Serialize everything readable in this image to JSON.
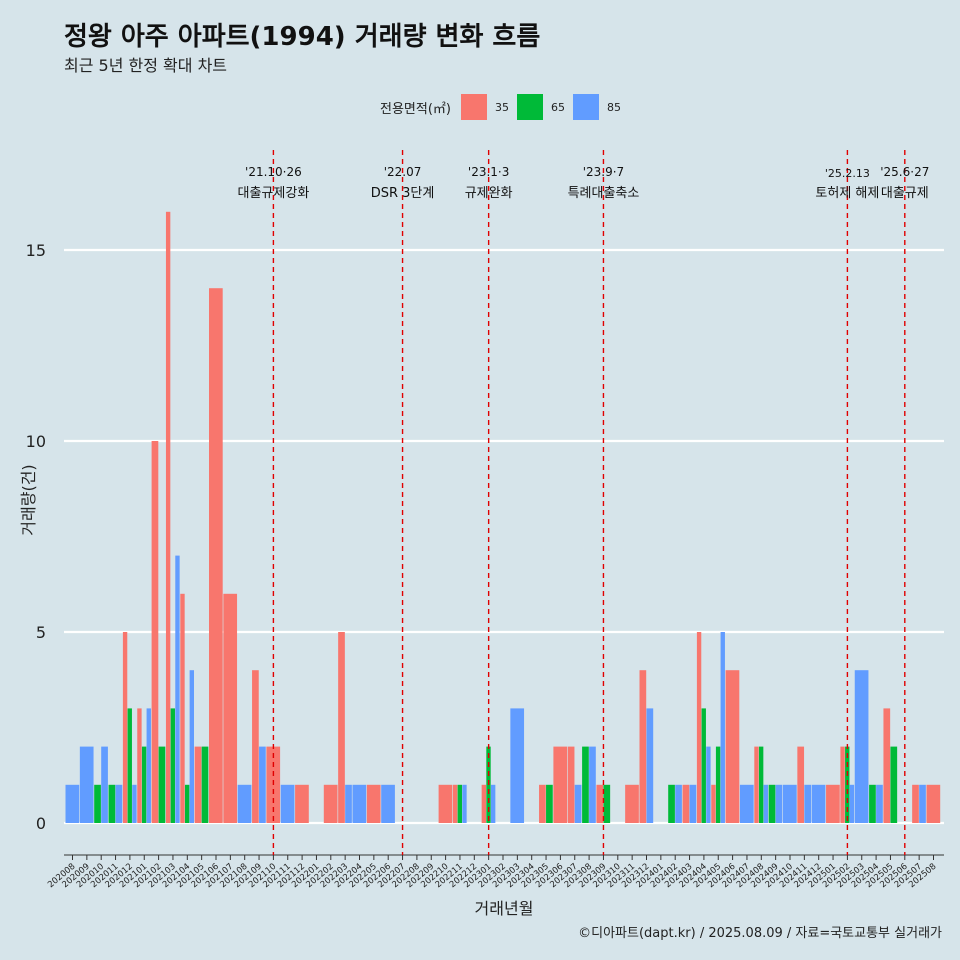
{
  "title": "정왕 아주 아파트(1994) 거래량 변화 흐름",
  "subtitle": "최근 5년 한정 확대 차트",
  "caption": "©디아파트(dapt.kr) / 2025.08.09 / 자료=국토교통부 실거래가",
  "colors": {
    "background": "#d6e4ea",
    "grid": "#ffffff",
    "s35": "#f8766d",
    "s65": "#00ba38",
    "s85": "#619cff",
    "event_line": "#e00000"
  },
  "chart_data": {
    "type": "bar",
    "xlabel": "거래년월",
    "ylabel": "거래량(건)",
    "ylim": [
      -0.7,
      17.5
    ],
    "yticks": [
      0,
      5,
      10,
      15
    ],
    "grid": true,
    "legend": {
      "title": "전용면적(㎡)",
      "position": "top",
      "entries": [
        "35",
        "65",
        "85"
      ]
    },
    "categories": [
      "202008",
      "202009",
      "202010",
      "202011",
      "202012",
      "202101",
      "202102",
      "202103",
      "202104",
      "202105",
      "202106",
      "202107",
      "202108",
      "202109",
      "202110",
      "202111",
      "202112",
      "202201",
      "202202",
      "202203",
      "202204",
      "202205",
      "202206",
      "202207",
      "202208",
      "202209",
      "202210",
      "202211",
      "202212",
      "202301",
      "202302",
      "202303",
      "202304",
      "202305",
      "202306",
      "202307",
      "202308",
      "202309",
      "202310",
      "202311",
      "202312",
      "202401",
      "202402",
      "202403",
      "202404",
      "202405",
      "202406",
      "202407",
      "202408",
      "202409",
      "202410",
      "202411",
      "202412",
      "202501",
      "202502",
      "202503",
      "202504",
      "202505",
      "202506",
      "202507",
      "202508"
    ],
    "series": [
      {
        "name": "35",
        "values": [
          0,
          0,
          0,
          0,
          5,
          3,
          10,
          16,
          6,
          2,
          14,
          6,
          0,
          4,
          2,
          0,
          1,
          0,
          1,
          5,
          0,
          1,
          0,
          0,
          0,
          0,
          1,
          1,
          0,
          1,
          0,
          0,
          0,
          1,
          2,
          2,
          0,
          1,
          0,
          1,
          4,
          0,
          0,
          1,
          5,
          1,
          4,
          0,
          2,
          0,
          0,
          2,
          0,
          1,
          2,
          0,
          0,
          3,
          0,
          1,
          1
        ]
      },
      {
        "name": "65",
        "values": [
          0,
          0,
          1,
          1,
          3,
          2,
          2,
          3,
          1,
          2,
          0,
          0,
          0,
          0,
          0,
          0,
          0,
          0,
          0,
          0,
          0,
          0,
          0,
          0,
          0,
          0,
          0,
          1,
          0,
          2,
          0,
          0,
          0,
          1,
          0,
          0,
          2,
          1,
          0,
          0,
          0,
          0,
          1,
          0,
          3,
          2,
          0,
          0,
          2,
          1,
          0,
          0,
          0,
          0,
          2,
          0,
          1,
          2,
          0,
          0,
          0
        ]
      },
      {
        "name": "85",
        "values": [
          1,
          2,
          2,
          1,
          1,
          3,
          0,
          7,
          4,
          0,
          0,
          0,
          1,
          2,
          0,
          1,
          0,
          0,
          0,
          1,
          1,
          0,
          1,
          0,
          0,
          0,
          0,
          1,
          0,
          1,
          0,
          3,
          0,
          0,
          0,
          1,
          2,
          0,
          0,
          0,
          3,
          0,
          1,
          1,
          2,
          5,
          0,
          1,
          1,
          1,
          1,
          1,
          1,
          0,
          1,
          4,
          1,
          0,
          0,
          1,
          0
        ]
      }
    ],
    "events": [
      {
        "date": "'21.10·26",
        "label": "대출규제강화",
        "at": 14
      },
      {
        "date": "'22.07",
        "label": "DSR 3단계",
        "at": 23
      },
      {
        "date": "'23.1·3",
        "label": "규제완화",
        "at": 29
      },
      {
        "date": "'23.9·7",
        "label": "특례대출축소",
        "at": 37
      },
      {
        "date": "'25.2.13",
        "label": "토허제 해제",
        "at": 54
      },
      {
        "date": "'25.6·27",
        "label": "대출규제",
        "at": 58
      }
    ]
  }
}
